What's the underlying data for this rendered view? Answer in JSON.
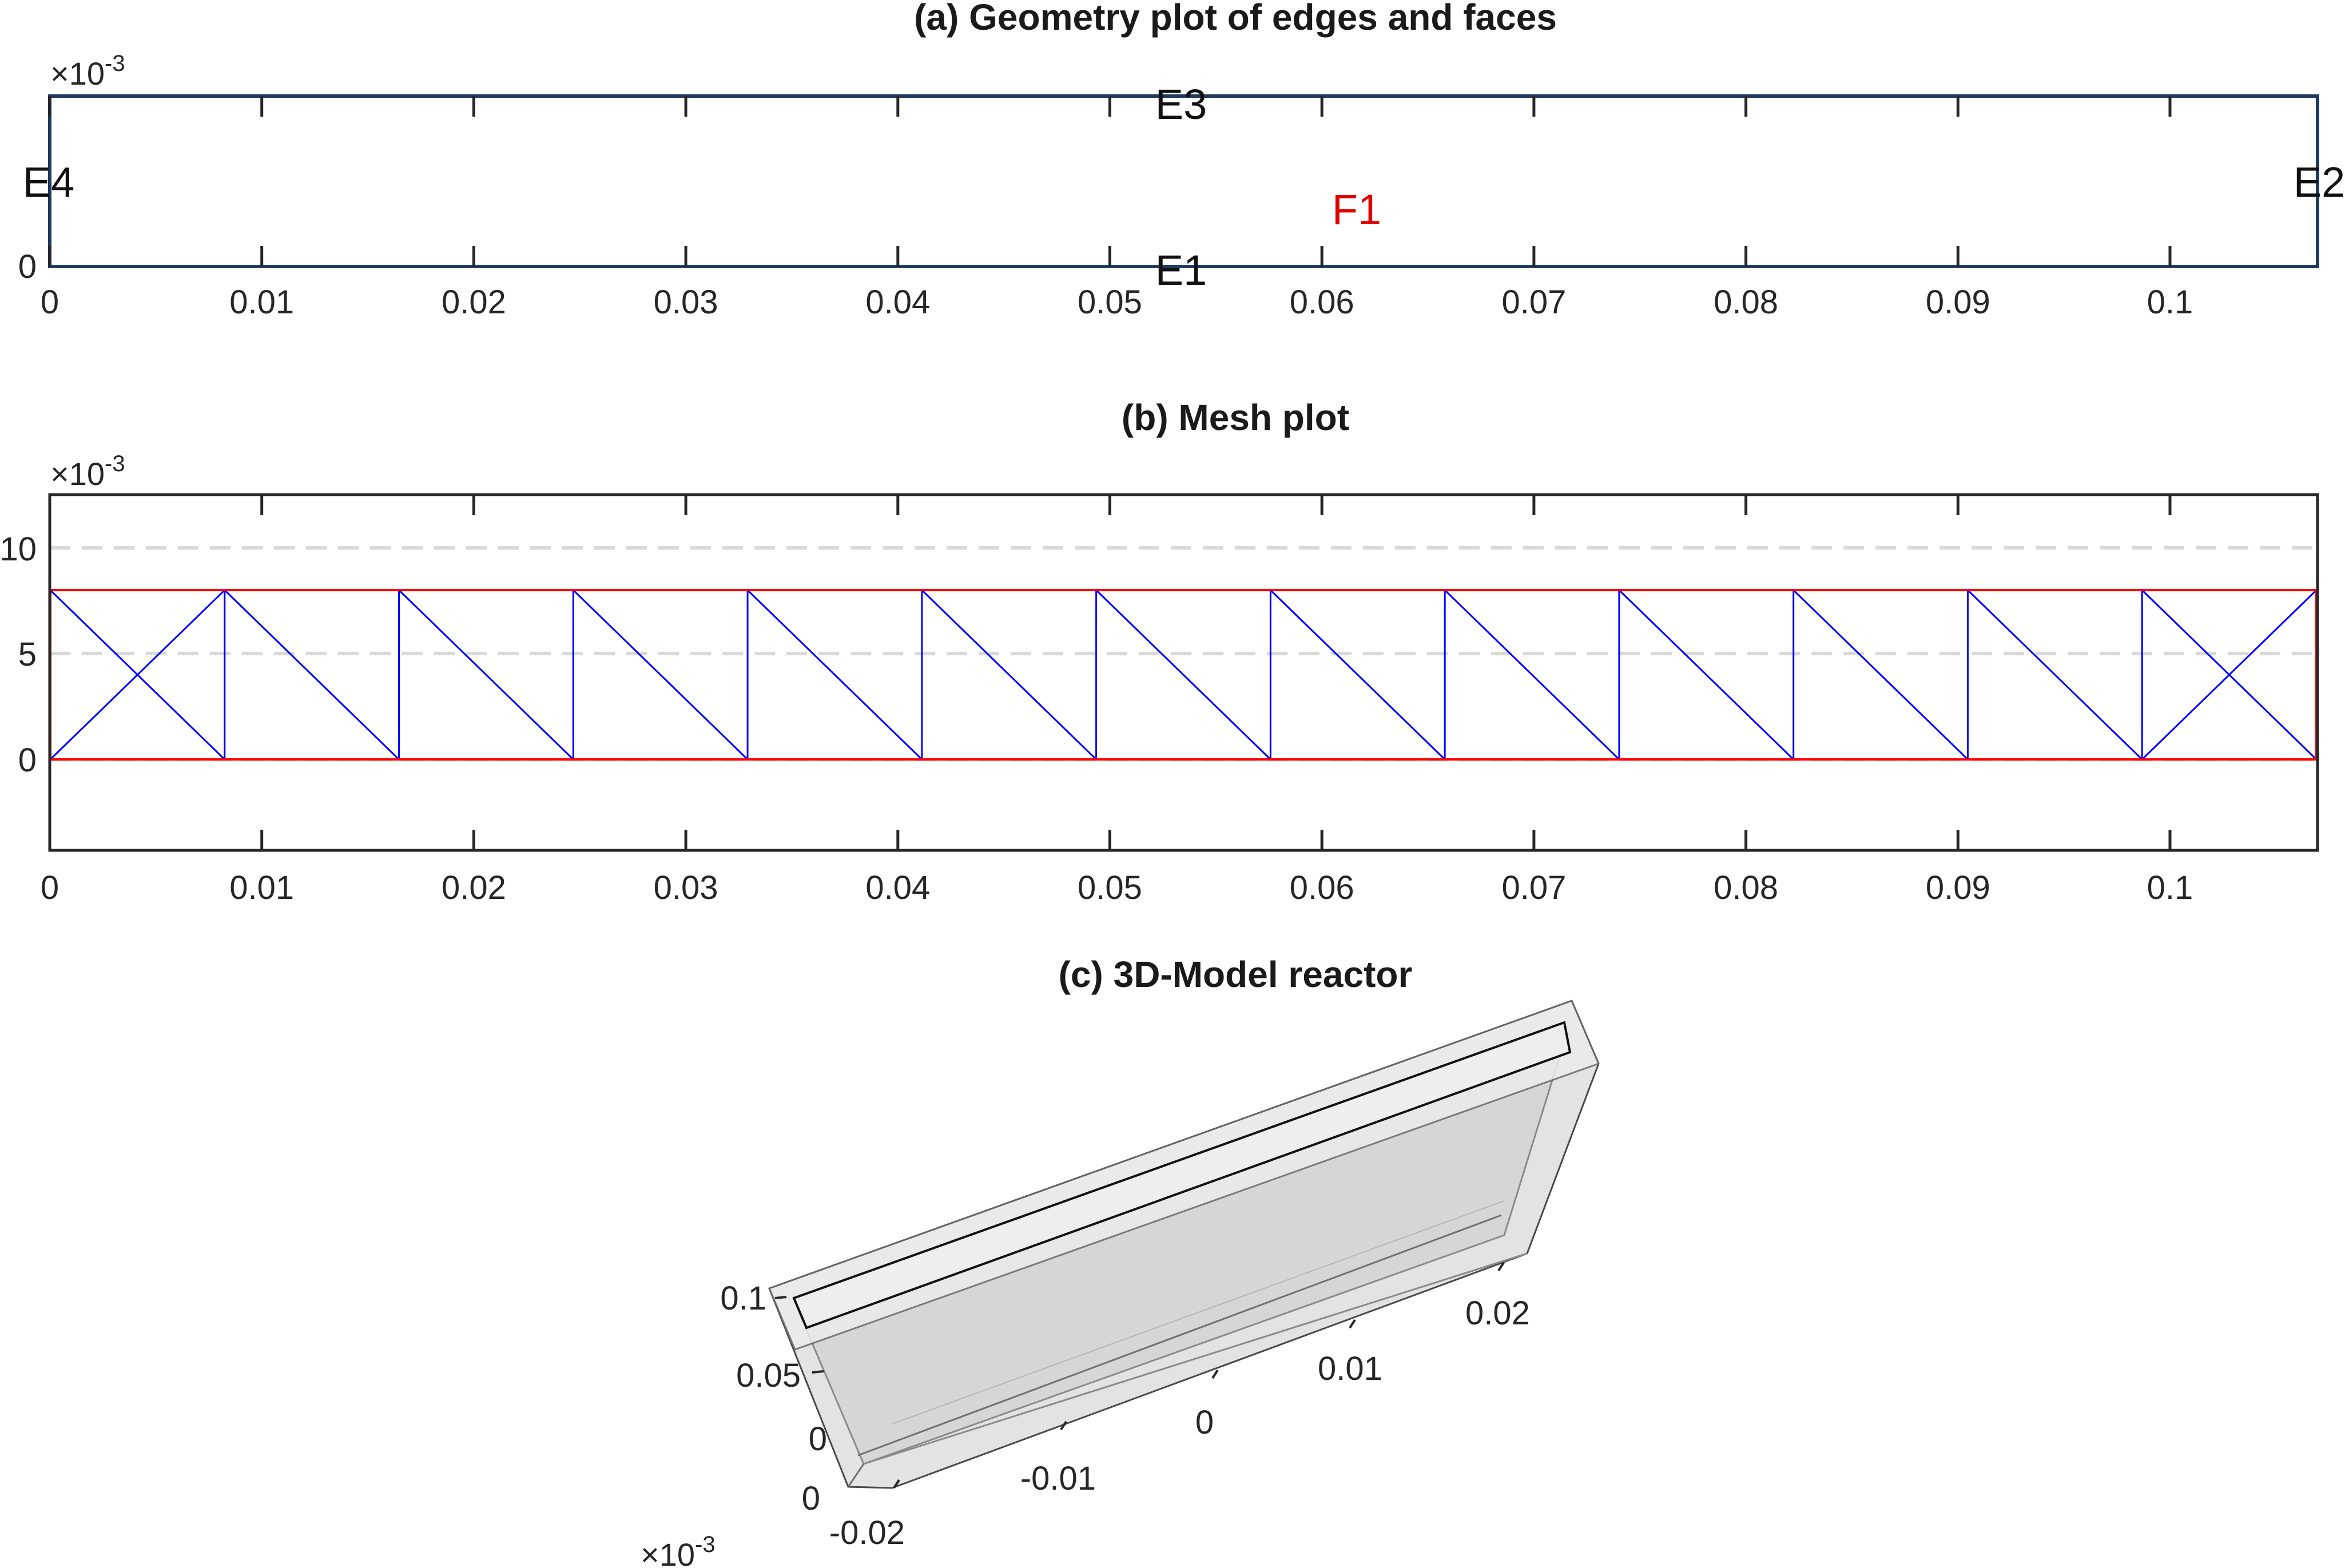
{
  "panel_a": {
    "title": "(a)    Geometry plot of edges and faces",
    "y_exponent": "×10",
    "y_exponent_power": "-3",
    "y_tick_labels": [
      "0"
    ],
    "x_tick_labels": [
      "0",
      "0.01",
      "0.02",
      "0.03",
      "0.04",
      "0.05",
      "0.06",
      "0.07",
      "0.08",
      "0.09",
      "0.1"
    ],
    "edge_labels": [
      "E1",
      "E2",
      "E3",
      "E4"
    ],
    "face_label": "F1"
  },
  "panel_b": {
    "title": "(b)    Mesh plot",
    "y_exponent": "×10",
    "y_exponent_power": "-3",
    "y_tick_labels": [
      "0",
      "5",
      "10"
    ],
    "x_tick_labels": [
      "0",
      "0.01",
      "0.02",
      "0.03",
      "0.04",
      "0.05",
      "0.06",
      "0.07",
      "0.08",
      "0.09",
      "0.1"
    ]
  },
  "panel_c": {
    "title": "(c)    3D-Model reactor",
    "z_tick_labels": [
      "0.1",
      "0.05",
      "0"
    ],
    "x_tick_labels": [
      "0"
    ],
    "y_tick_labels": [
      "-0.02",
      "-0.01",
      "0",
      "0.01",
      "0.02"
    ],
    "exponent": "×10",
    "exponent_power": "-3"
  },
  "colors": {
    "axes": "#262626",
    "geometry_edge": "#1e3a5f",
    "mesh_element": "#0000ff",
    "boundary": "#ff0000",
    "grid": "#d9d9d9",
    "face_label": "#e00000",
    "solid_fill": "#dcdcdc"
  }
}
